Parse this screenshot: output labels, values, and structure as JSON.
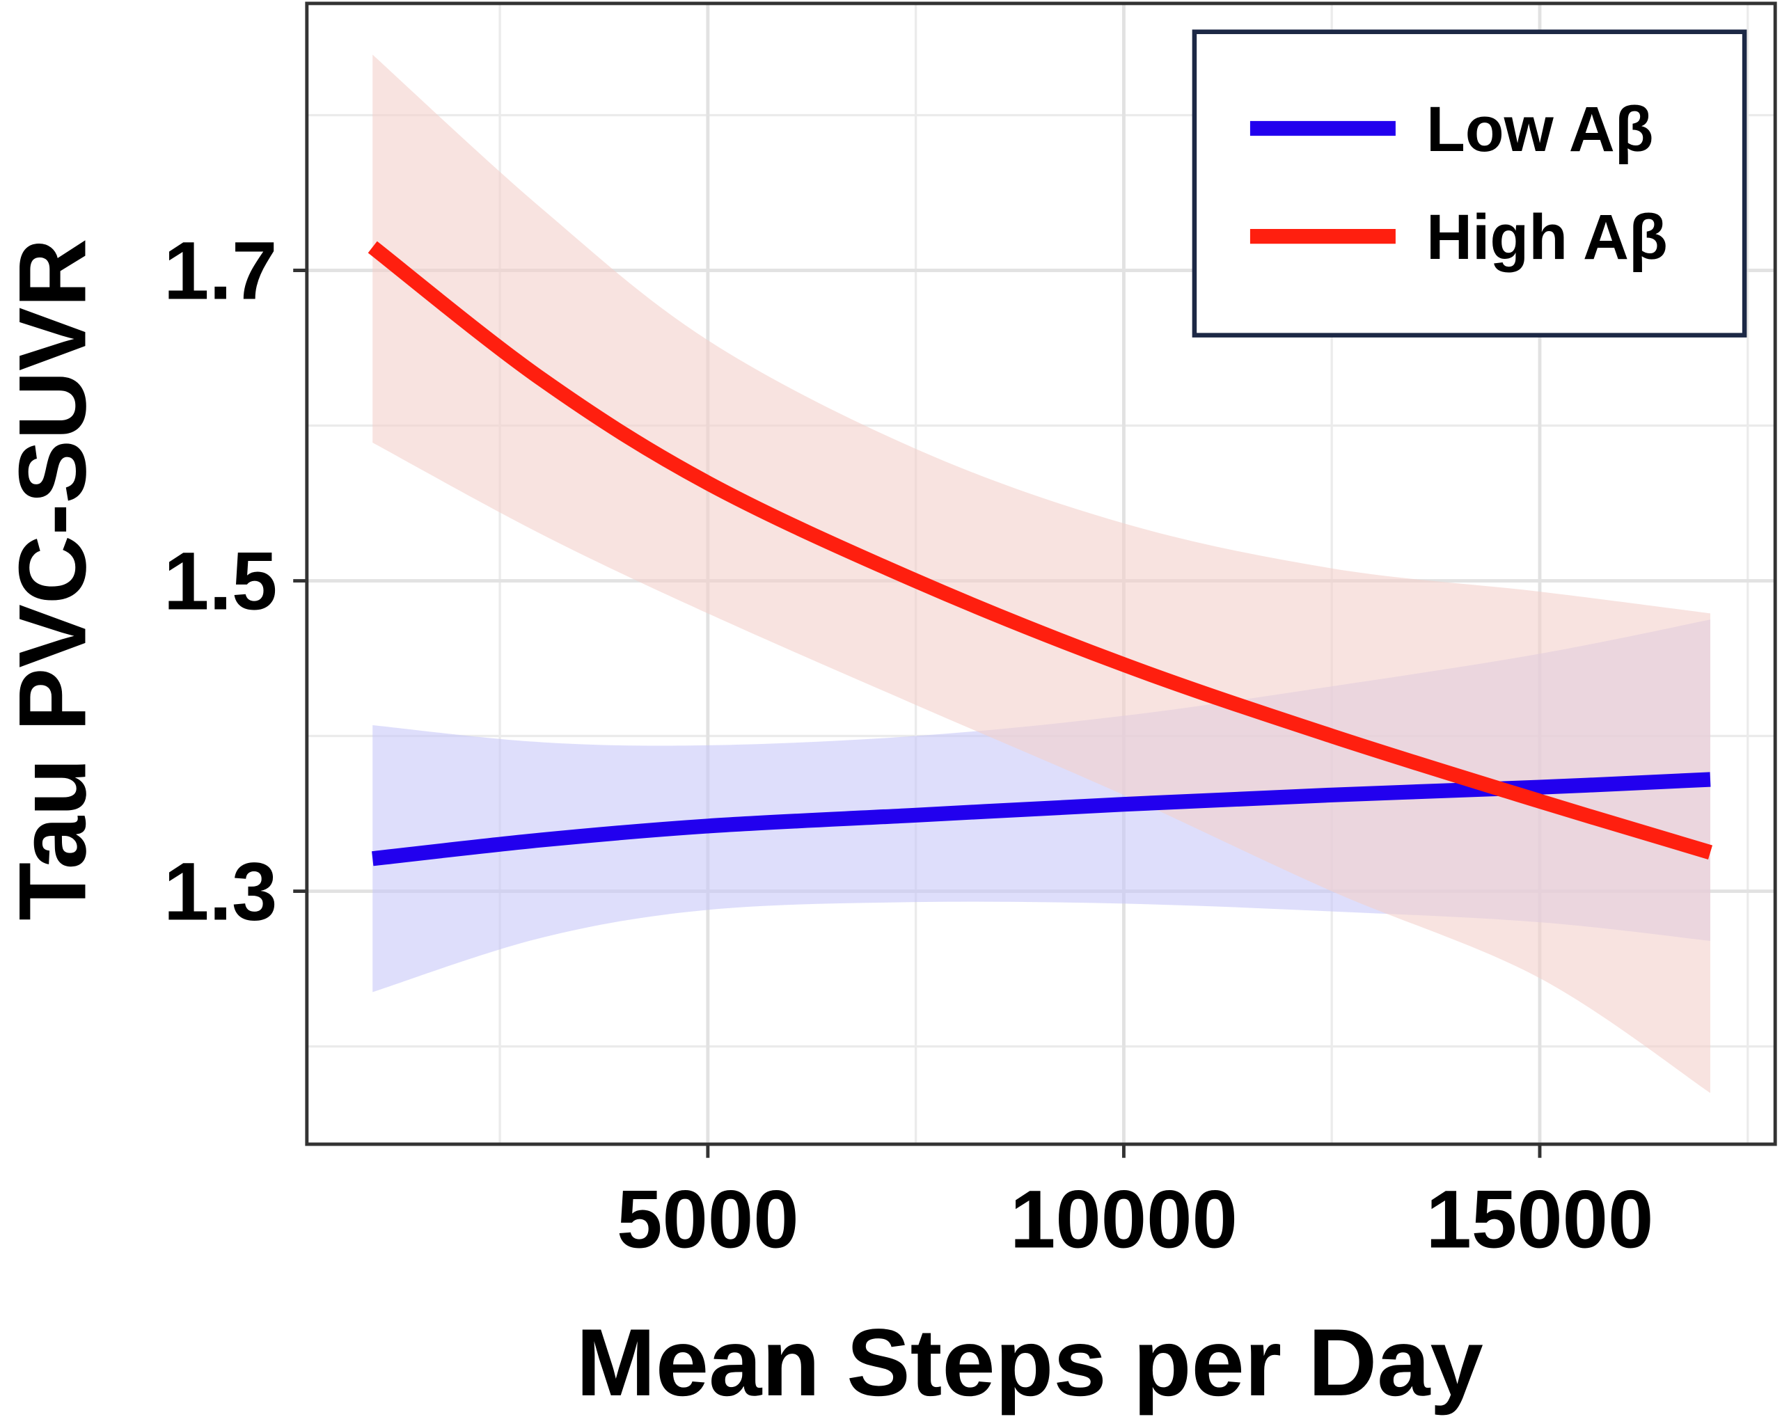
{
  "chart_data": {
    "type": "line",
    "title": "",
    "xlabel": "Mean Steps per Day",
    "ylabel": "Tau PVC-SUVR",
    "xlim": [
      180,
      17830
    ],
    "ylim": [
      1.137,
      1.872
    ],
    "xticks": [
      5000,
      10000,
      15000
    ],
    "xtick_labels": [
      "5000",
      "10000",
      "15000"
    ],
    "yticks": [
      1.3,
      1.5,
      1.7
    ],
    "ytick_labels": [
      "1.3",
      "1.5",
      "1.7"
    ],
    "grid": true,
    "legend_position": "top-right",
    "x": [
      970,
      3000,
      5000,
      7500,
      10000,
      12500,
      15000,
      17050
    ],
    "series": [
      {
        "name": "Low Aβ",
        "color": "#2200ee",
        "band_color": "#c8c8f8",
        "values": [
          1.321,
          1.333,
          1.342,
          1.349,
          1.356,
          1.362,
          1.367,
          1.372
        ],
        "ci_upper": [
          1.407,
          1.396,
          1.394,
          1.4,
          1.413,
          1.432,
          1.453,
          1.475
        ],
        "ci_lower": [
          1.235,
          1.27,
          1.288,
          1.293,
          1.292,
          1.287,
          1.28,
          1.268
        ]
      },
      {
        "name": "High Aβ",
        "color": "#ff1f0f",
        "band_color": "#f3d0cc",
        "values": [
          1.715,
          1.63,
          1.563,
          1.5,
          1.446,
          1.4,
          1.358,
          1.325
        ],
        "ci_upper": [
          1.839,
          1.74,
          1.655,
          1.585,
          1.537,
          1.508,
          1.493,
          1.479
        ],
        "ci_lower": [
          1.589,
          1.53,
          1.479,
          1.42,
          1.362,
          1.3,
          1.244,
          1.17
        ]
      }
    ]
  }
}
